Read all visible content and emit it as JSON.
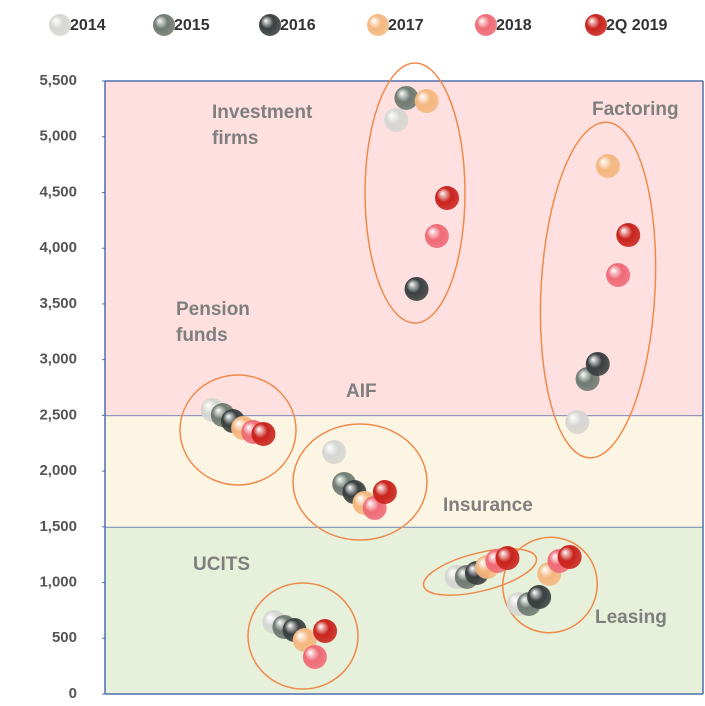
{
  "chart_data": {
    "type": "scatter",
    "ylim": [
      0,
      5500
    ],
    "yticks": [
      0,
      500,
      {
        "value": 1000,
        "label": "1,000"
      },
      {
        "value": 1500,
        "label": "1,500"
      },
      {
        "value": 2000,
        "label": "2,000"
      },
      {
        "value": 2500,
        "label": "2,500"
      },
      {
        "value": 3000,
        "label": "3,000"
      },
      {
        "value": 3500,
        "label": "3,500"
      },
      {
        "value": 4000,
        "label": "4,000"
      },
      {
        "value": 4500,
        "label": "4,500"
      },
      {
        "value": 5000,
        "label": "5,000"
      },
      {
        "value": 5500,
        "label": "5,500"
      }
    ],
    "xlim": [
      0,
      100
    ],
    "bands": [
      {
        "from": 0,
        "to": 1500,
        "color": "#e6f0da"
      },
      {
        "from": 1500,
        "to": 2500,
        "color": "#fdf5e3"
      },
      {
        "from": 2500,
        "to": 5500,
        "color": "#fde0df"
      }
    ],
    "annotations": [
      "Investment firms",
      "Factoring",
      "Pension funds",
      "AIF",
      "Insurance",
      "UCITS",
      "Leasing"
    ],
    "series": [
      {
        "name": "2014",
        "color": "#d6d6d3",
        "x": [
          18,
          28.3,
          38.3,
          48.7,
          58.8,
          69.2,
          79
        ],
        "values": [
          2548,
          646,
          2171,
          5150,
          1050,
          807,
          2440
        ]
      },
      {
        "name": "2015",
        "color": "#6f7a72",
        "x": [
          19.7,
          30,
          40,
          50.4,
          60.5,
          70.9,
          80.7
        ],
        "values": [
          2503,
          601,
          1884,
          5348,
          1050,
          807,
          2826
        ]
      },
      {
        "name": "2016",
        "color": "#3a3f3f",
        "x": [
          21.4,
          31.7,
          41.7,
          52.1,
          62.2,
          72.6,
          82.4
        ],
        "values": [
          2449,
          574,
          1812,
          3634,
          1086,
          870,
          2961
        ]
      },
      {
        "name": "2017",
        "color": "#f4b77f",
        "x": [
          23.1,
          33.4,
          43.4,
          53.8,
          63.9,
          74.3,
          84.1
        ],
        "values": [
          2387,
          484,
          1714,
          5320,
          1139,
          1077,
          4737
        ]
      },
      {
        "name": "2018",
        "color": "#ef6a76",
        "x": [
          24.8,
          35.1,
          45.1,
          55.5,
          65.6,
          76,
          85.8
        ],
        "values": [
          2351,
          332,
          1669,
          4109,
          1193,
          1193,
          3759
        ]
      },
      {
        "name": "2Q 2019",
        "color": "#c9231c",
        "x": [
          26.5,
          36.8,
          46.8,
          57.2,
          67.3,
          77.7,
          87.5
        ],
        "values": [
          2333,
          565,
          1812,
          4450,
          1220,
          1229,
          4118
        ]
      }
    ]
  }
}
